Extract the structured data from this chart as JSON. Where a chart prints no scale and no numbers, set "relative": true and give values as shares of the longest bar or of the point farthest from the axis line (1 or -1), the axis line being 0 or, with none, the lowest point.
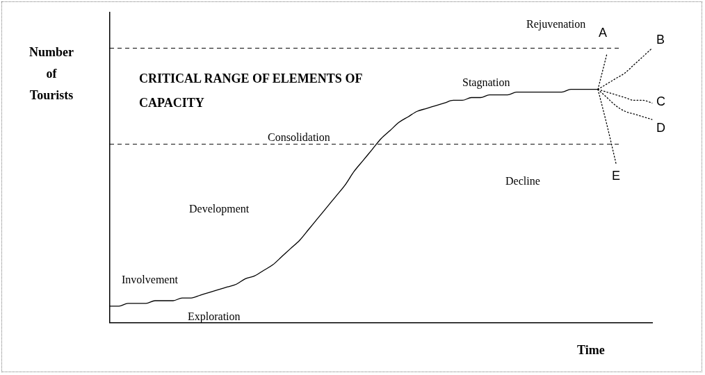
{
  "chart_data": {
    "type": "line",
    "relative": true,
    "marker": "none",
    "xlabel": "Time",
    "ylabel": "Number of Tourists",
    "categories": [
      null,
      null,
      null,
      null,
      null,
      null,
      null,
      null,
      null,
      null,
      null,
      null,
      null,
      null,
      null,
      null,
      null,
      null,
      null,
      null,
      null,
      null,
      null,
      null,
      null,
      null,
      null,
      null,
      null,
      null,
      null,
      null,
      null,
      null,
      null,
      null,
      null,
      null,
      null,
      null,
      null,
      null,
      null,
      null,
      null,
      null,
      null,
      null,
      null,
      null,
      null,
      null,
      null,
      null,
      null,
      null,
      null,
      null,
      null,
      null,
      null
    ],
    "series": [
      {
        "color": "#000000",
        "line_style": "solid",
        "values": [
          0.06,
          0.06,
          0.07,
          0.07,
          0.07,
          0.08,
          0.08,
          0.08,
          0.09,
          0.09,
          0.1,
          0.11,
          0.12,
          0.13,
          0.14,
          0.16,
          0.17,
          0.19,
          0.21,
          0.24,
          0.27,
          0.3,
          0.34,
          0.38,
          0.42,
          0.46,
          0.5,
          0.55,
          0.59,
          0.63,
          0.67,
          0.7,
          0.73,
          0.75,
          0.77,
          0.78,
          0.79,
          0.8,
          0.81,
          0.81,
          0.82,
          0.82,
          0.83,
          0.83,
          0.83,
          0.84,
          0.84,
          0.84,
          0.84,
          0.84,
          0.84,
          0.85,
          0.85,
          0.85,
          0.85,
          null,
          null,
          null,
          null,
          null,
          null
        ]
      },
      {
        "name": "A",
        "color": "#000000",
        "line_style": "dotted",
        "values": [
          null,
          null,
          null,
          null,
          null,
          null,
          null,
          null,
          null,
          null,
          null,
          null,
          null,
          null,
          null,
          null,
          null,
          null,
          null,
          null,
          null,
          null,
          null,
          null,
          null,
          null,
          null,
          null,
          null,
          null,
          null,
          null,
          null,
          null,
          null,
          null,
          null,
          null,
          null,
          null,
          null,
          null,
          null,
          null,
          null,
          null,
          null,
          null,
          null,
          null,
          null,
          null,
          null,
          null,
          0.85,
          0.98,
          null,
          null,
          null,
          null,
          null
        ]
      },
      {
        "name": "B",
        "color": "#000000",
        "line_style": "dotted",
        "values": [
          null,
          null,
          null,
          null,
          null,
          null,
          null,
          null,
          null,
          null,
          null,
          null,
          null,
          null,
          null,
          null,
          null,
          null,
          null,
          null,
          null,
          null,
          null,
          null,
          null,
          null,
          null,
          null,
          null,
          null,
          null,
          null,
          null,
          null,
          null,
          null,
          null,
          null,
          null,
          null,
          null,
          null,
          null,
          null,
          null,
          null,
          null,
          null,
          null,
          null,
          null,
          null,
          null,
          null,
          0.85,
          0.87,
          0.89,
          0.91,
          0.94,
          0.97,
          1.0
        ]
      },
      {
        "name": "C",
        "color": "#000000",
        "line_style": "dotted",
        "values": [
          null,
          null,
          null,
          null,
          null,
          null,
          null,
          null,
          null,
          null,
          null,
          null,
          null,
          null,
          null,
          null,
          null,
          null,
          null,
          null,
          null,
          null,
          null,
          null,
          null,
          null,
          null,
          null,
          null,
          null,
          null,
          null,
          null,
          null,
          null,
          null,
          null,
          null,
          null,
          null,
          null,
          null,
          null,
          null,
          null,
          null,
          null,
          null,
          null,
          null,
          null,
          null,
          null,
          null,
          0.85,
          0.84,
          0.83,
          0.82,
          0.81,
          0.81,
          0.8
        ]
      },
      {
        "name": "D",
        "color": "#000000",
        "line_style": "dotted",
        "values": [
          null,
          null,
          null,
          null,
          null,
          null,
          null,
          null,
          null,
          null,
          null,
          null,
          null,
          null,
          null,
          null,
          null,
          null,
          null,
          null,
          null,
          null,
          null,
          null,
          null,
          null,
          null,
          null,
          null,
          null,
          null,
          null,
          null,
          null,
          null,
          null,
          null,
          null,
          null,
          null,
          null,
          null,
          null,
          null,
          null,
          null,
          null,
          null,
          null,
          null,
          null,
          null,
          null,
          null,
          0.85,
          0.82,
          0.79,
          0.77,
          0.76,
          0.75,
          0.74
        ]
      },
      {
        "name": "E",
        "color": "#000000",
        "line_style": "dotted",
        "values": [
          null,
          null,
          null,
          null,
          null,
          null,
          null,
          null,
          null,
          null,
          null,
          null,
          null,
          null,
          null,
          null,
          null,
          null,
          null,
          null,
          null,
          null,
          null,
          null,
          null,
          null,
          null,
          null,
          null,
          null,
          null,
          null,
          null,
          null,
          null,
          null,
          null,
          null,
          null,
          null,
          null,
          null,
          null,
          null,
          null,
          null,
          null,
          null,
          null,
          null,
          null,
          null,
          null,
          null,
          0.85,
          0.72,
          0.58,
          null,
          null,
          null,
          null
        ]
      }
    ],
    "ref_lines": [
      {
        "axis": "y",
        "value": 1.0,
        "line_style": "dashed"
      },
      {
        "axis": "y",
        "value": 0.65,
        "line_style": "dashed"
      }
    ],
    "annotations": [
      "Rejuvenation",
      "CRITICAL RANGE OF ELEMENTS OF CAPACITY",
      "Stagnation",
      "Consolidation",
      "Development",
      "Involvement",
      "Exploration",
      "Decline"
    ]
  }
}
